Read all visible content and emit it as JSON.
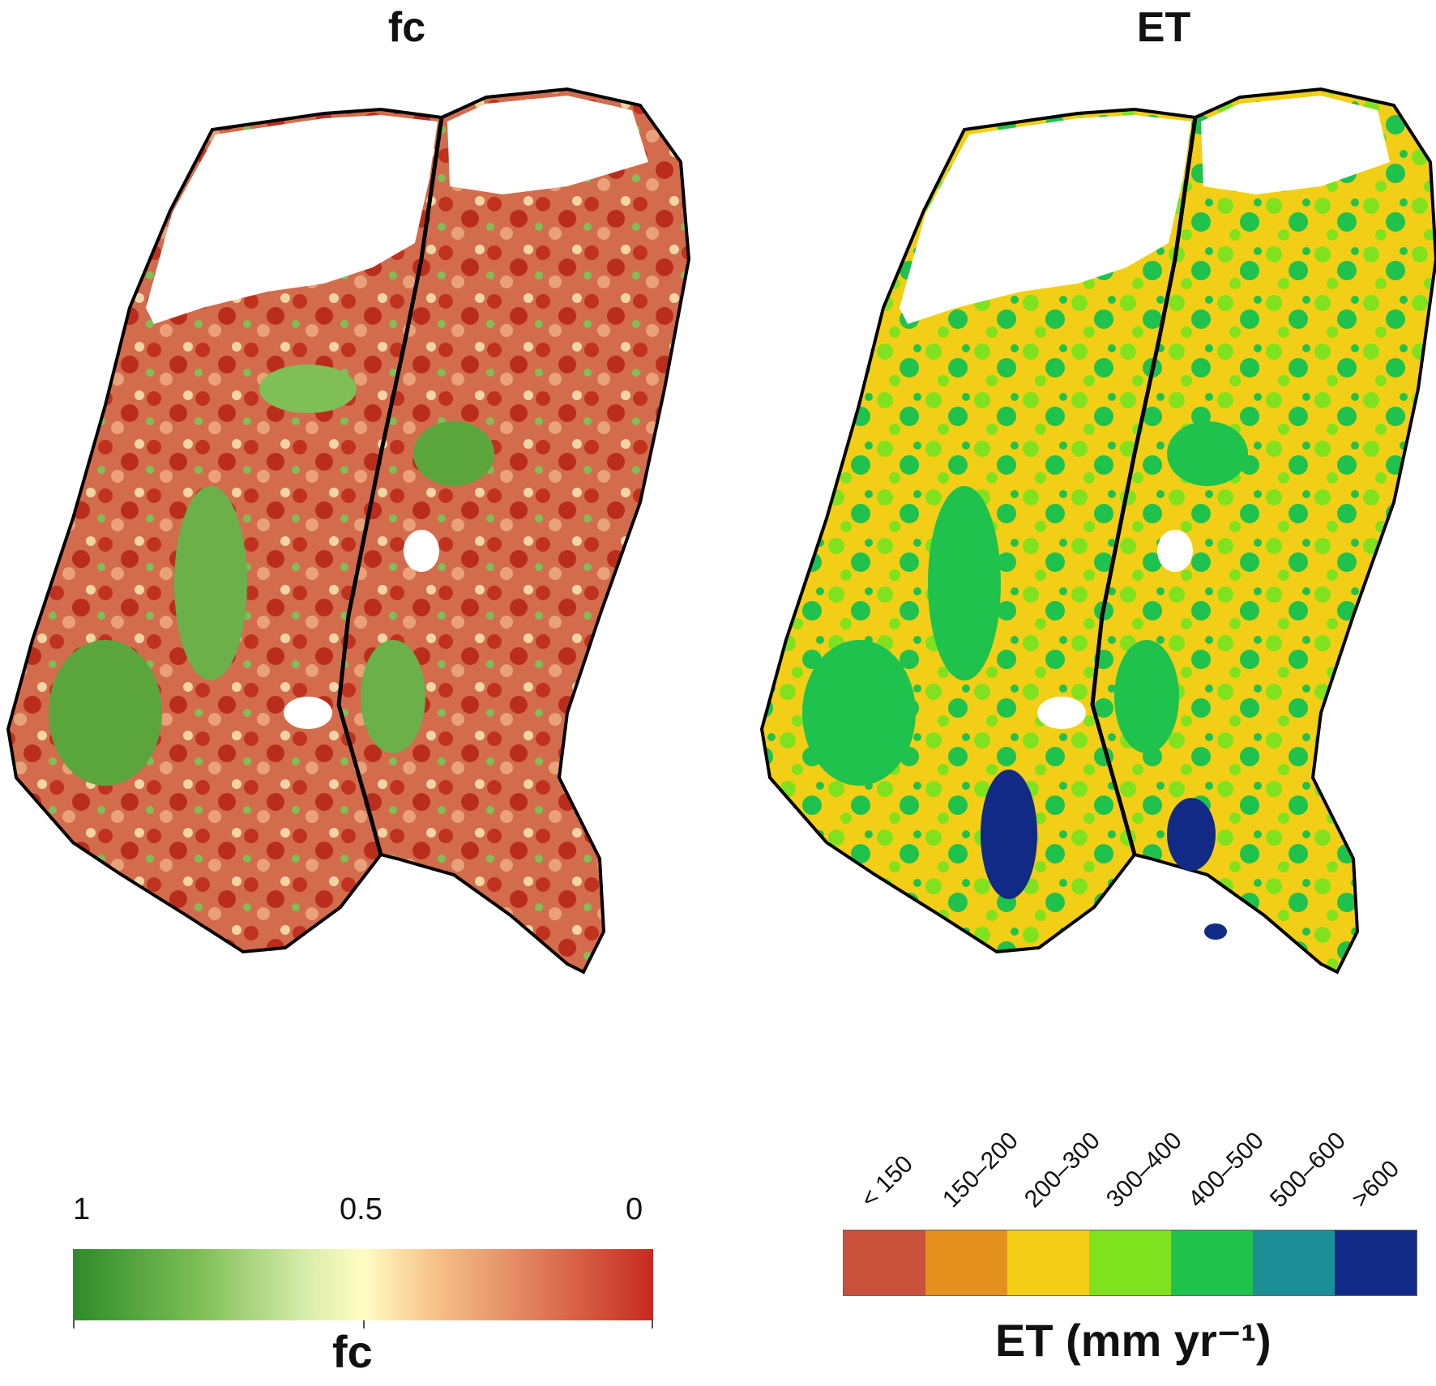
{
  "panels": {
    "fc": {
      "title": "fc"
    },
    "et": {
      "title": "ET"
    }
  },
  "fc_legend": {
    "ticks": [
      "1",
      "0.5",
      "0"
    ],
    "axis_label": "fc",
    "colors": {
      "high": "#2e8b2a",
      "mid": "#fffdc4",
      "low": "#c62a1f"
    }
  },
  "et_legend": {
    "classes": [
      {
        "label": "< 150",
        "color": "#c9503a"
      },
      {
        "label": "150–200",
        "color": "#e4901e"
      },
      {
        "label": "200–300",
        "color": "#f2cf16"
      },
      {
        "label": "300–400",
        "color": "#80e21e"
      },
      {
        "label": "400–500",
        "color": "#1ec24c"
      },
      {
        "label": "500–600",
        "color": "#1e8e96"
      },
      {
        "label": ">600",
        "color": "#112a86"
      }
    ],
    "axis_label": "ET (mm yr⁻¹)"
  }
}
